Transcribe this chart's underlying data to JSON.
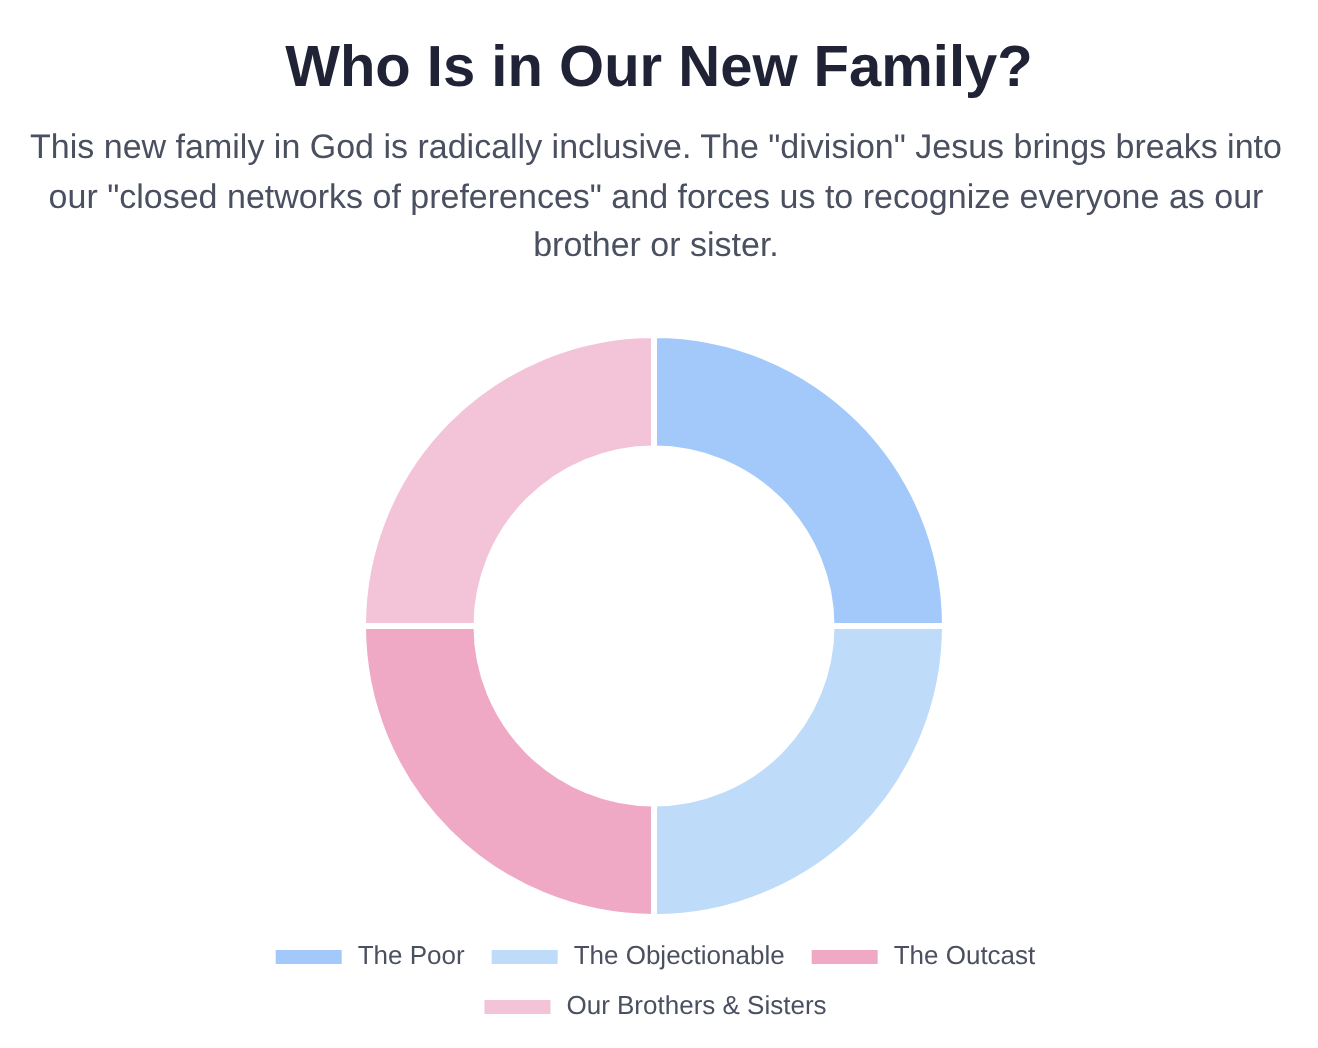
{
  "chart_data": {
    "type": "donut",
    "title": "Who Is in Our New Family?",
    "subtitle": "This new family in God is radically inclusive. The \"division\" Jesus brings breaks into our \"closed networks of preferences\" and forces us to recognize everyone as our brother or sister.",
    "categories": [
      "The Poor",
      "The Objectionable",
      "The Outcast",
      "Our Brothers & Sisters"
    ],
    "values": [
      25,
      25,
      25,
      25
    ],
    "colors": [
      "#a3c9fb",
      "#bedbf9",
      "#f0a9c5",
      "#f3c3d8"
    ],
    "legend": "bottom"
  }
}
